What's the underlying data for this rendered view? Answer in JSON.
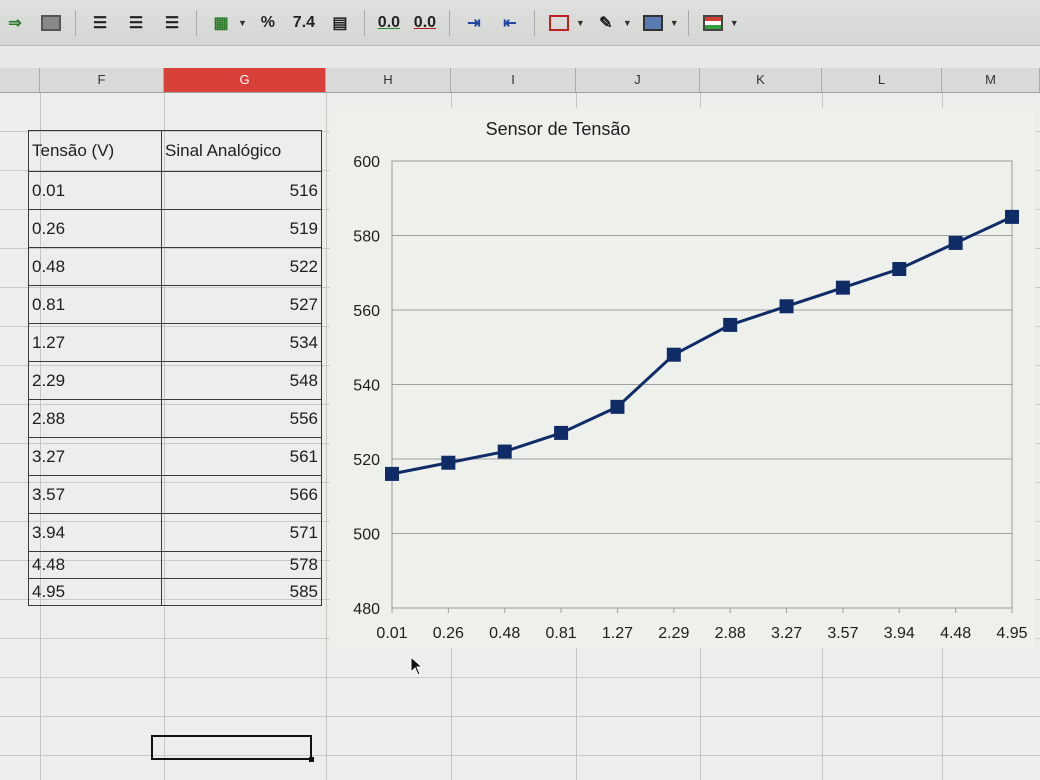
{
  "toolbar": {
    "percent_label": "%",
    "number_format_label": "7.4",
    "add_decimal_label": "0.0",
    "remove_decimal_label": "0.0"
  },
  "columns": [
    "F",
    "G",
    "H",
    "I",
    "J",
    "K",
    "L",
    "M"
  ],
  "selected_column": "G",
  "table": {
    "headers": [
      "Tensão (V)",
      "Sinal Analógico"
    ],
    "rows": [
      [
        "0.01",
        "516"
      ],
      [
        "0.26",
        "519"
      ],
      [
        "0.48",
        "522"
      ],
      [
        "0.81",
        "527"
      ],
      [
        "1.27",
        "534"
      ],
      [
        "2.29",
        "548"
      ],
      [
        "2.88",
        "556"
      ],
      [
        "3.27",
        "561"
      ],
      [
        "3.57",
        "566"
      ],
      [
        "3.94",
        "571"
      ],
      [
        "4.48",
        "578"
      ],
      [
        "4.95",
        "585"
      ]
    ]
  },
  "chart_data": {
    "type": "line",
    "title": "Sensor de Tensão",
    "categories": [
      "0.01",
      "0.26",
      "0.48",
      "0.81",
      "1.27",
      "2.29",
      "2.88",
      "3.27",
      "3.57",
      "3.94",
      "4.48",
      "4.95"
    ],
    "series": [
      {
        "values": [
          516,
          519,
          522,
          527,
          534,
          548,
          556,
          561,
          566,
          571,
          578,
          585
        ],
        "color": "#0f2c66",
        "marker": "square"
      }
    ],
    "ylim": [
      480,
      600
    ],
    "yticks": [
      480,
      500,
      520,
      540,
      560,
      580,
      600
    ],
    "grid": true,
    "legend": "none"
  }
}
